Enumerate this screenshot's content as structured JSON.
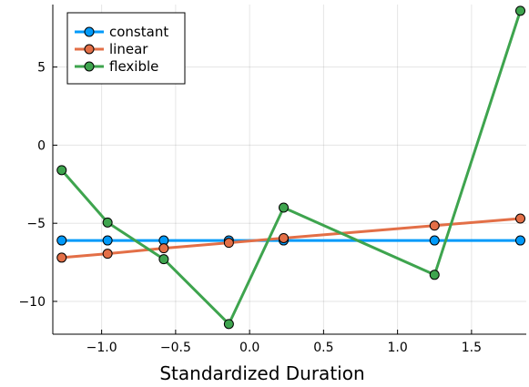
{
  "chart_data": {
    "type": "line",
    "title": "",
    "xlabel": "Standardized Duration",
    "ylabel": "",
    "xlim": [
      -1.33,
      1.87
    ],
    "ylim": [
      -12.1,
      9.0
    ],
    "xticks": [
      -1.0,
      -0.5,
      0.0,
      0.5,
      1.0,
      1.5
    ],
    "xtick_labels": [
      "−1.0",
      "−0.5",
      "0.0",
      "0.5",
      "1.0",
      "1.5"
    ],
    "yticks": [
      -10,
      -5,
      0,
      5
    ],
    "ytick_labels": [
      "−10",
      "−5",
      "0",
      "5"
    ],
    "grid": true,
    "legend_position": "top-left",
    "x": [
      -1.27,
      -0.96,
      -0.58,
      -0.14,
      0.23,
      1.25,
      1.83
    ],
    "series": [
      {
        "name": "constant",
        "color": "#009AFA",
        "values": [
          -6.1,
          -6.1,
          -6.1,
          -6.1,
          -6.1,
          -6.1,
          -6.1
        ]
      },
      {
        "name": "linear",
        "color": "#E36F47",
        "values": [
          -7.2,
          -6.95,
          -6.6,
          -6.25,
          -5.95,
          -5.15,
          -4.7
        ]
      },
      {
        "name": "flexible",
        "color": "#3EA44E",
        "values": [
          -1.6,
          -4.95,
          -7.3,
          -11.45,
          -4.0,
          -8.3,
          8.6
        ]
      }
    ]
  }
}
